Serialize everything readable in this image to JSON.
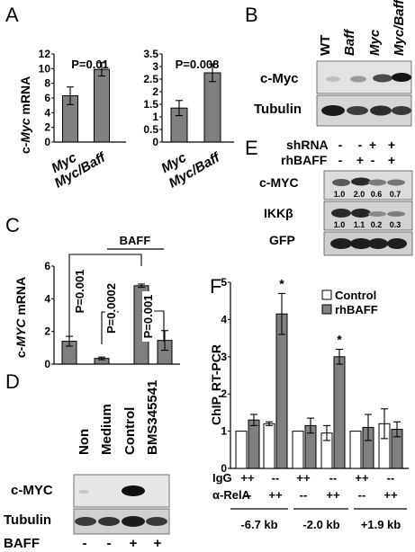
{
  "panels": {
    "A": {
      "letter": "A",
      "ylabel_prefix": "c-",
      "ylabel_gene": "Myc",
      "ylabel_suffix": " mRNA",
      "left": {
        "pvalue": "P=0.01",
        "yticks": [
          "0",
          "2",
          "4",
          "6",
          "8",
          "10",
          "12"
        ],
        "xticks": [
          "Myc",
          "Myc/Baff"
        ]
      },
      "right": {
        "pvalue": "P=0.008",
        "yticks": [
          "0",
          "0.5",
          "1",
          "1.5",
          "2",
          "2.5",
          "3",
          "3.5"
        ],
        "xticks": [
          "Myc",
          "Myc/Baff"
        ]
      }
    },
    "B": {
      "letter": "B",
      "lanes": [
        "WT",
        "Baff",
        "Myc",
        "Myc/Baff"
      ],
      "rows": [
        "c-Myc",
        "Tubulin"
      ]
    },
    "C": {
      "letter": "C",
      "ylabel_prefix": "c-",
      "ylabel_gene": "MYC",
      "ylabel_suffix": " mRNA",
      "yticks": [
        "0",
        "2",
        "4",
        "6"
      ],
      "group_label": "BAFF",
      "pvalues": [
        "P=0.001",
        "P=0.0002",
        "P=0.001"
      ]
    },
    "D": {
      "letter": "D",
      "lanes": [
        "Non",
        "Medium",
        "Control",
        "BMS345541"
      ],
      "rows": [
        "c-MYC",
        "Tubulin"
      ],
      "baff_label": "BAFF",
      "baff_signs": [
        "-",
        "-",
        "+",
        "+"
      ]
    },
    "E": {
      "letter": "E",
      "shrna_label": "shRNA",
      "shrna_signs": [
        "-",
        "-",
        "+",
        "+"
      ],
      "rhbaff_label": "rhBAFF",
      "rhbaff_signs": [
        "-",
        "+",
        "-",
        "+"
      ],
      "rows": [
        "c-MYC",
        "IKKβ",
        "GFP"
      ],
      "cmyc_quant": [
        "1.0",
        "2.0",
        "0.6",
        "0.7"
      ],
      "ikkb_quant": [
        "1.0",
        "1.1",
        "0.2",
        "0.3"
      ]
    },
    "F": {
      "letter": "F",
      "ylabel": "ChIP, RT-PCR",
      "yticks": [
        "0",
        "1",
        "2",
        "3",
        "4",
        "5"
      ],
      "legend": [
        "Control",
        "rhBAFF"
      ],
      "star": "*",
      "igg_label": "IgG",
      "rela_label": "α-RelA",
      "igg_signs": [
        "++",
        "--",
        "++",
        "--",
        "++",
        "--"
      ],
      "rela_signs": [
        "--",
        "++",
        "--",
        "++",
        "--",
        "++"
      ],
      "regions": [
        "-6.7 kb",
        "-2.0 kb",
        "+1.9 kb"
      ]
    }
  },
  "chart_data": [
    {
      "type": "bar",
      "panel": "A-left",
      "categories": [
        "Myc",
        "Myc/Baff"
      ],
      "values": [
        6.3,
        9.9
      ],
      "errors": [
        1.2,
        0.9
      ],
      "ylabel": "c-Myc mRNA",
      "ylim": [
        0,
        12
      ],
      "annotation": "P=0.01",
      "color": "#808080"
    },
    {
      "type": "bar",
      "panel": "A-right",
      "categories": [
        "Myc",
        "Myc/Baff"
      ],
      "values": [
        1.35,
        2.75
      ],
      "errors": [
        0.3,
        0.35
      ],
      "ylim": [
        0,
        3.5
      ],
      "annotation": "P=0.008",
      "color": "#808080"
    },
    {
      "type": "bar",
      "panel": "C",
      "values": [
        1.4,
        0.35,
        4.8,
        1.45
      ],
      "errors": [
        0.3,
        0.08,
        0.1,
        0.6
      ],
      "ylabel": "c-MYC mRNA",
      "ylim": [
        0,
        6
      ],
      "annotations": [
        "P=0.001",
        "P=0.0002",
        "P=0.001"
      ],
      "color": "#808080"
    },
    {
      "type": "bar",
      "panel": "F",
      "ylabel": "ChIP, RT-PCR",
      "ylim": [
        0,
        5
      ],
      "series": [
        {
          "name": "Control",
          "color": "#ffffff",
          "values": [
            1.0,
            1.2,
            1.0,
            0.95,
            1.0,
            1.2
          ],
          "errors": [
            0,
            0.05,
            0,
            0.2,
            0,
            0.4
          ]
        },
        {
          "name": "rhBAFF",
          "color": "#808080",
          "values": [
            1.3,
            4.15,
            1.15,
            3.0,
            1.1,
            1.05
          ],
          "errors": [
            0.15,
            0.55,
            0.2,
            0.2,
            0.35,
            0.2
          ]
        }
      ],
      "groups": [
        {
          "region": "-6.7 kb",
          "igg": "++",
          "rela": "--"
        },
        {
          "region": "-6.7 kb",
          "igg": "--",
          "rela": "++"
        },
        {
          "region": "-2.0 kb",
          "igg": "++",
          "rela": "--"
        },
        {
          "region": "-2.0 kb",
          "igg": "--",
          "rela": "++"
        },
        {
          "region": "+1.9 kb",
          "igg": "++",
          "rela": "--"
        },
        {
          "region": "+1.9 kb",
          "igg": "--",
          "rela": "++"
        }
      ],
      "significant": [
        1,
        3
      ]
    }
  ]
}
